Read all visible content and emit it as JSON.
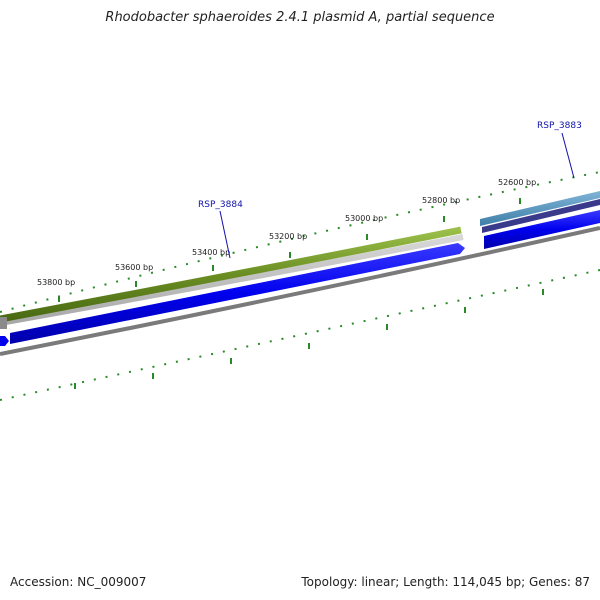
{
  "title": "Rhodobacter sphaeroides 2.4.1 plasmid A, partial sequence",
  "footer": {
    "accession_label": "Accession: NC_009007",
    "stats_label": "Topology: linear; Length: 114,045 bp; Genes: 87"
  },
  "ruler": {
    "labels": [
      "53800 bp",
      "53600 bp",
      "53400 bp",
      "53200 bp",
      "53000 bp",
      "52800 bp",
      "52600 bp"
    ]
  },
  "genes": [
    {
      "name": "RSP_3884"
    },
    {
      "name": "RSP_3883"
    }
  ],
  "colors": {
    "gene_cds_blue": "#0000ee",
    "gene_green": "#6b8e23",
    "gene_steelblue": "#4f8fb8",
    "gene_navy": "#3a3a8c",
    "backbone_grey": "#7a7a7a",
    "tick_green": "#2a8a2a",
    "label_blue": "#1111aa"
  }
}
